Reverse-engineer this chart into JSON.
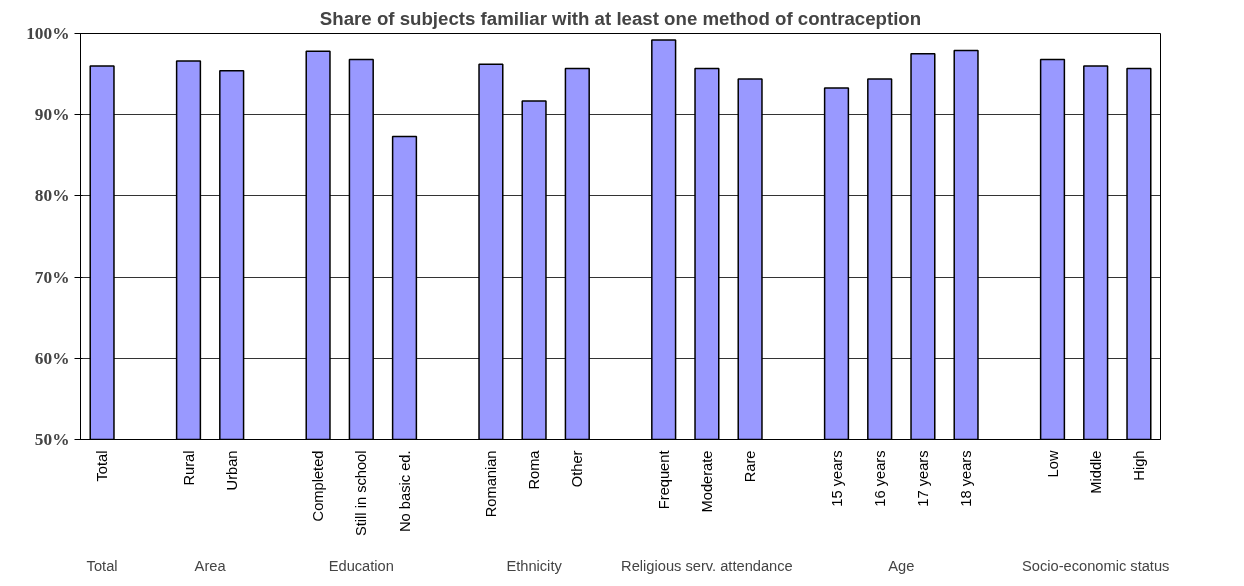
{
  "chart_data": {
    "type": "bar",
    "title": "Share of subjects familiar with at least one method of contraception",
    "categories": [
      "Total",
      null,
      "Rural",
      "Urban",
      null,
      "Completed",
      "Still in school",
      "No basic ed.",
      null,
      "Romanian",
      "Roma",
      "Other",
      null,
      "Frequent",
      "Moderate",
      "Rare",
      null,
      "15 years",
      "16 years",
      "17 years",
      "18 years",
      null,
      "Low",
      "Middle",
      "High"
    ],
    "values": [
      96.0,
      null,
      96.6,
      95.4,
      null,
      97.8,
      96.8,
      87.3,
      null,
      96.2,
      91.7,
      95.7,
      null,
      99.2,
      95.7,
      94.4,
      null,
      93.3,
      94.4,
      97.5,
      97.9,
      null,
      96.8,
      96.0,
      95.7
    ],
    "color": "#9999ff",
    "ylim": [
      50,
      100
    ],
    "yticks": [
      {
        "value": 50,
        "label": "50%"
      },
      {
        "value": 60,
        "label": "60%"
      },
      {
        "value": 70,
        "label": "70%"
      },
      {
        "value": 80,
        "label": "80%"
      },
      {
        "value": 90,
        "label": "90%"
      },
      {
        "value": 100,
        "label": "100%"
      }
    ],
    "grid": "y",
    "annotations": [
      "Total",
      "Area",
      "Education",
      "Ethnicity",
      "Religious serv. attendance",
      "Age",
      "Socio-economic status"
    ]
  }
}
